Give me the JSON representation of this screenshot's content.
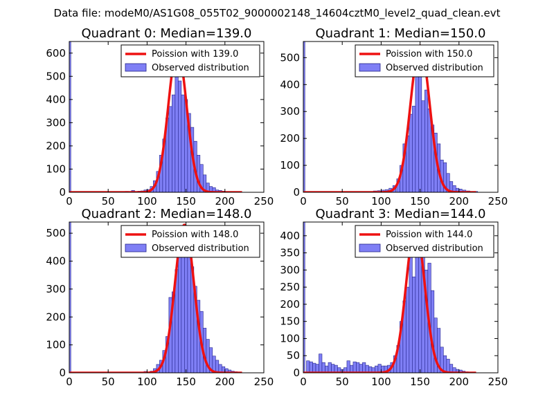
{
  "figure_title": "Data file: modeM0/AS1G08_055T02_9000002148_14604cztM0_level2_quad_clean.evt",
  "colors": {
    "hist_fill": "#7f7ff5",
    "hist_edge": "#22228a",
    "poisson_line": "#ee1111",
    "axes": "#000000"
  },
  "chart_data": [
    {
      "type": "bar",
      "title": "Quadrant 0: Median=139.0",
      "xlabel": "",
      "ylabel": "",
      "xlim": [
        0,
        250
      ],
      "ylim": [
        0,
        650
      ],
      "xticks": [
        "0",
        "50",
        "100",
        "150",
        "200",
        "250"
      ],
      "yticks": [
        "0",
        "100",
        "200",
        "300",
        "400",
        "500",
        "600"
      ],
      "legend": [
        "Poission with 139.0",
        "Observed distribution"
      ],
      "median": 139,
      "bins": [
        [
          72,
          4
        ],
        [
          80,
          8
        ],
        [
          84,
          2
        ],
        [
          88,
          5
        ],
        [
          92,
          6
        ],
        [
          96,
          10
        ],
        [
          100,
          12
        ],
        [
          104,
          25
        ],
        [
          108,
          50
        ],
        [
          112,
          90
        ],
        [
          116,
          160
        ],
        [
          120,
          230
        ],
        [
          124,
          320
        ],
        [
          128,
          370
        ],
        [
          132,
          420
        ],
        [
          136,
          520
        ],
        [
          140,
          480
        ],
        [
          144,
          420
        ],
        [
          148,
          400
        ],
        [
          152,
          340
        ],
        [
          156,
          280
        ],
        [
          160,
          220
        ],
        [
          164,
          160
        ],
        [
          168,
          120
        ],
        [
          172,
          75
        ],
        [
          176,
          40
        ],
        [
          180,
          25
        ],
        [
          184,
          20
        ],
        [
          188,
          10
        ],
        [
          192,
          8
        ],
        [
          196,
          5
        ],
        [
          200,
          3
        ]
      ],
      "edge_spike": 650,
      "poisson_peak": 615
    },
    {
      "type": "bar",
      "title": "Quadrant 1: Median=150.0",
      "xlabel": "",
      "ylabel": "",
      "xlim": [
        0,
        250
      ],
      "ylim": [
        0,
        560
      ],
      "xticks": [
        "0",
        "50",
        "100",
        "150",
        "200",
        "250"
      ],
      "yticks": [
        "0",
        "100",
        "200",
        "300",
        "400",
        "500"
      ],
      "legend": [
        "Poission with 150.0",
        "Observed distribution"
      ],
      "median": 150,
      "bins": [
        [
          45,
          3
        ],
        [
          60,
          3
        ],
        [
          80,
          3
        ],
        [
          90,
          5
        ],
        [
          95,
          6
        ],
        [
          100,
          8
        ],
        [
          105,
          10
        ],
        [
          110,
          15
        ],
        [
          115,
          25
        ],
        [
          120,
          50
        ],
        [
          124,
          100
        ],
        [
          128,
          180
        ],
        [
          132,
          210
        ],
        [
          136,
          290
        ],
        [
          140,
          320
        ],
        [
          144,
          440
        ],
        [
          148,
          500
        ],
        [
          152,
          340
        ],
        [
          156,
          380
        ],
        [
          160,
          310
        ],
        [
          164,
          250
        ],
        [
          168,
          220
        ],
        [
          172,
          180
        ],
        [
          176,
          120
        ],
        [
          180,
          110
        ],
        [
          184,
          70
        ],
        [
          188,
          40
        ],
        [
          192,
          25
        ],
        [
          196,
          15
        ],
        [
          200,
          12
        ],
        [
          205,
          8
        ],
        [
          210,
          5
        ],
        [
          220,
          3
        ]
      ],
      "edge_spike": 560,
      "poisson_peak": 545
    },
    {
      "type": "bar",
      "title": "Quadrant 2: Median=148.0",
      "xlabel": "",
      "ylabel": "",
      "xlim": [
        0,
        250
      ],
      "ylim": [
        0,
        540
      ],
      "xticks": [
        "0",
        "50",
        "100",
        "150",
        "200",
        "250"
      ],
      "yticks": [
        "0",
        "100",
        "200",
        "300",
        "400",
        "500"
      ],
      "legend": [
        "Poission with 148.0",
        "Observed distribution"
      ],
      "median": 148,
      "bins": [
        [
          72,
          3
        ],
        [
          96,
          5
        ],
        [
          104,
          6
        ],
        [
          108,
          15
        ],
        [
          112,
          30
        ],
        [
          116,
          45
        ],
        [
          120,
          80
        ],
        [
          124,
          130
        ],
        [
          128,
          270
        ],
        [
          132,
          290
        ],
        [
          136,
          370
        ],
        [
          140,
          440
        ],
        [
          144,
          480
        ],
        [
          148,
          500
        ],
        [
          152,
          420
        ],
        [
          156,
          380
        ],
        [
          160,
          310
        ],
        [
          164,
          260
        ],
        [
          168,
          220
        ],
        [
          172,
          160
        ],
        [
          176,
          120
        ],
        [
          180,
          90
        ],
        [
          184,
          60
        ],
        [
          188,
          45
        ],
        [
          192,
          30
        ],
        [
          196,
          22
        ],
        [
          200,
          15
        ],
        [
          204,
          10
        ],
        [
          208,
          6
        ],
        [
          212,
          4
        ],
        [
          216,
          3
        ]
      ],
      "edge_spike": 540,
      "poisson_peak": 530
    },
    {
      "type": "bar",
      "title": "Quadrant 3: Median=144.0",
      "xlabel": "",
      "ylabel": "",
      "xlim": [
        0,
        250
      ],
      "ylim": [
        0,
        440
      ],
      "xticks": [
        "0",
        "50",
        "100",
        "150",
        "200",
        "250"
      ],
      "yticks": [
        "0",
        "50",
        "100",
        "150",
        "200",
        "250",
        "300",
        "350",
        "400"
      ],
      "legend": [
        "Poission with 144.0",
        "Observed distribution"
      ],
      "median": 144,
      "bins": [
        [
          4,
          35
        ],
        [
          8,
          32
        ],
        [
          12,
          28
        ],
        [
          16,
          25
        ],
        [
          20,
          55
        ],
        [
          24,
          30
        ],
        [
          28,
          20
        ],
        [
          32,
          30
        ],
        [
          36,
          25
        ],
        [
          40,
          22
        ],
        [
          44,
          15
        ],
        [
          48,
          10
        ],
        [
          52,
          15
        ],
        [
          56,
          35
        ],
        [
          60,
          22
        ],
        [
          64,
          32
        ],
        [
          68,
          30
        ],
        [
          72,
          25
        ],
        [
          76,
          30
        ],
        [
          80,
          22
        ],
        [
          84,
          18
        ],
        [
          88,
          15
        ],
        [
          92,
          20
        ],
        [
          96,
          25
        ],
        [
          100,
          20
        ],
        [
          104,
          20
        ],
        [
          108,
          22
        ],
        [
          112,
          30
        ],
        [
          116,
          50
        ],
        [
          120,
          80
        ],
        [
          124,
          150
        ],
        [
          128,
          210
        ],
        [
          132,
          250
        ],
        [
          136,
          340
        ],
        [
          140,
          280
        ],
        [
          144,
          390
        ],
        [
          148,
          420
        ],
        [
          152,
          380
        ],
        [
          156,
          300
        ],
        [
          160,
          320
        ],
        [
          164,
          240
        ],
        [
          168,
          160
        ],
        [
          172,
          130
        ],
        [
          176,
          75
        ],
        [
          180,
          50
        ],
        [
          184,
          40
        ],
        [
          188,
          25
        ],
        [
          192,
          15
        ],
        [
          196,
          10
        ],
        [
          200,
          8
        ],
        [
          204,
          5
        ],
        [
          208,
          3
        ]
      ],
      "edge_spike": 440,
      "poisson_peak": 425
    }
  ]
}
